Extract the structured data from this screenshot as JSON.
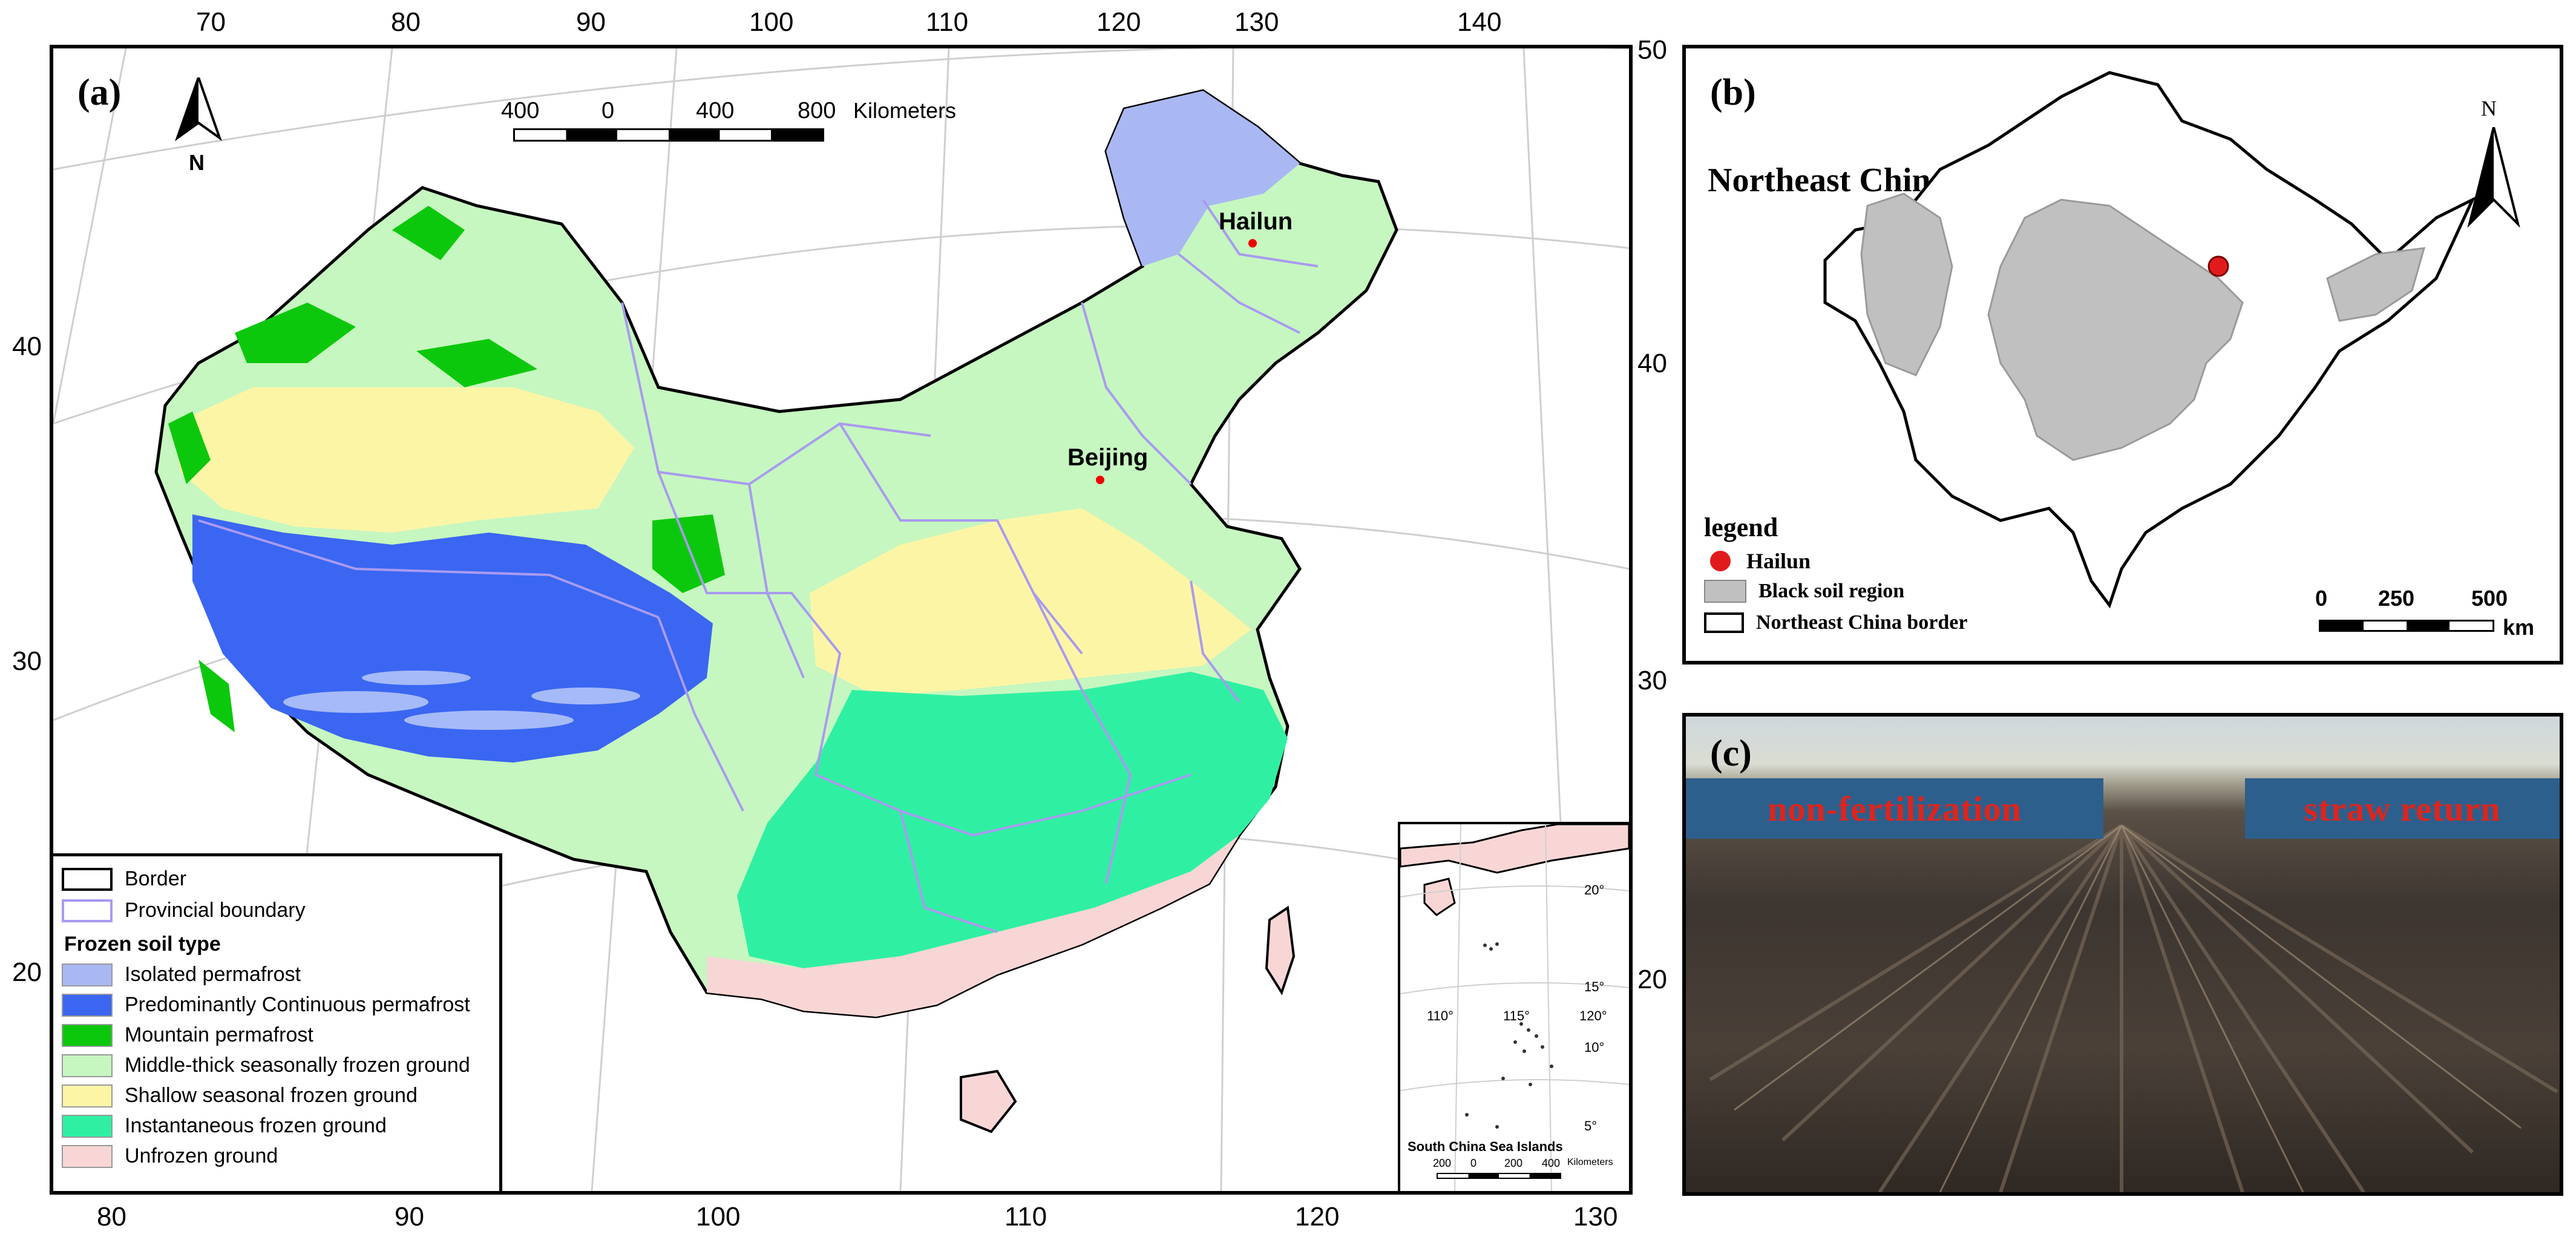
{
  "panel_a": {
    "label": "(a)",
    "north_label": "N",
    "scalebar": {
      "ticks": [
        "400",
        "0",
        "400",
        "800"
      ],
      "unit": "Kilometers"
    },
    "top_lon_ticks": [
      "70",
      "80",
      "90",
      "100",
      "110",
      "120",
      "130",
      "140"
    ],
    "bottom_lon_ticks": [
      "80",
      "90",
      "100",
      "110",
      "120",
      "130"
    ],
    "left_lat_ticks": [
      "40",
      "30",
      "20"
    ],
    "right_lat_ticks": [
      "50",
      "40",
      "30",
      "20"
    ],
    "cities": [
      {
        "name": "Hailun"
      },
      {
        "name": "Beijing"
      }
    ],
    "legend": {
      "border_label": "Border",
      "provincial_label": "Provincial boundary",
      "frozen_title": "Frozen soil type",
      "items": [
        {
          "label": "Isolated permafrost",
          "color": "#a9b8f2"
        },
        {
          "label": "Predominantly Continuous permafrost",
          "color": "#3a66f2"
        },
        {
          "label": "Mountain permafrost",
          "color": "#0cc80c"
        },
        {
          "label": "Middle-thick seasonally frozen ground",
          "color": "#c6f7c0"
        },
        {
          "label": "Shallow seasonal frozen ground",
          "color": "#fdf5a6"
        },
        {
          "label": "Instantaneous frozen ground",
          "color": "#2ff0a2"
        },
        {
          "label": "Unfrozen ground",
          "color": "#f8d6d6"
        }
      ]
    },
    "inset": {
      "title": "South China Sea Islands",
      "lat_ticks": [
        "20°",
        "15°",
        "10°",
        "5°"
      ],
      "lon_ticks": [
        "110°",
        "115°",
        "120°"
      ],
      "scale_ticks": [
        "200",
        "0",
        "200",
        "400"
      ],
      "scale_unit": "Kilometers"
    }
  },
  "panel_b": {
    "label": "(b)",
    "title": "Northeast China",
    "north_label": "N",
    "legend_title": "legend",
    "legend_items": [
      "Hailun",
      "Black soil region",
      "Northeast China border"
    ],
    "scale_ticks": [
      "0",
      "250",
      "500"
    ],
    "scale_unit": "km",
    "colors": {
      "black_soil": "#c0c0c0",
      "hailun": "#e11b1b"
    }
  },
  "panel_c": {
    "label": "(c)",
    "left_banner": "non-fertilization",
    "right_banner": "straw return"
  }
}
